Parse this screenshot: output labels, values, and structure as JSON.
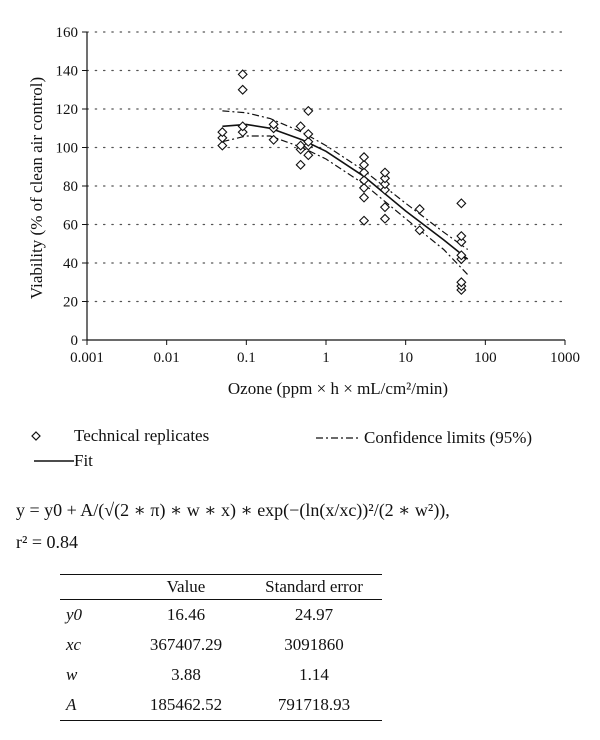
{
  "chart_data": {
    "type": "scatter",
    "xlabel": "Ozone (ppm × h × mL/cm²/min)",
    "ylabel": "Viability (% of clean air control)",
    "x_scale": "log",
    "xlim": [
      0.001,
      1000
    ],
    "ylim": [
      0,
      160
    ],
    "x_ticks": [
      "0.001",
      "0.01",
      "0.1",
      "1",
      "10",
      "100",
      "1000"
    ],
    "y_ticks": [
      "0",
      "20",
      "40",
      "60",
      "80",
      "100",
      "120",
      "140",
      "160"
    ],
    "grid": "dotted horizontal",
    "series": [
      {
        "name": "Technical replicates",
        "marker": "diamond",
        "points": [
          [
            0.05,
            101
          ],
          [
            0.05,
            105
          ],
          [
            0.05,
            108
          ],
          [
            0.09,
            108
          ],
          [
            0.09,
            111
          ],
          [
            0.09,
            130
          ],
          [
            0.09,
            138
          ],
          [
            0.22,
            104
          ],
          [
            0.22,
            110
          ],
          [
            0.22,
            112
          ],
          [
            0.48,
            91
          ],
          [
            0.48,
            99
          ],
          [
            0.48,
            101
          ],
          [
            0.48,
            111
          ],
          [
            0.6,
            96
          ],
          [
            0.6,
            101
          ],
          [
            0.6,
            103
          ],
          [
            0.6,
            107
          ],
          [
            0.6,
            119
          ],
          [
            3.0,
            62
          ],
          [
            3.0,
            74
          ],
          [
            3.0,
            79
          ],
          [
            3.0,
            83
          ],
          [
            3.0,
            87
          ],
          [
            3.0,
            91
          ],
          [
            3.0,
            95
          ],
          [
            5.5,
            63
          ],
          [
            5.5,
            69
          ],
          [
            5.5,
            78
          ],
          [
            5.5,
            81
          ],
          [
            5.5,
            84
          ],
          [
            5.5,
            87
          ],
          [
            15,
            57
          ],
          [
            15,
            68
          ],
          [
            50,
            26
          ],
          [
            50,
            28
          ],
          [
            50,
            30
          ],
          [
            50,
            42
          ],
          [
            50,
            44
          ],
          [
            50,
            51
          ],
          [
            50,
            54
          ],
          [
            50,
            71
          ]
        ]
      },
      {
        "name": "Fit",
        "style": "solid",
        "points": [
          [
            0.05,
            111
          ],
          [
            0.1,
            112
          ],
          [
            0.2,
            110
          ],
          [
            0.5,
            104
          ],
          [
            1,
            98
          ],
          [
            3,
            85
          ],
          [
            10,
            67
          ],
          [
            30,
            52
          ],
          [
            60,
            42
          ]
        ]
      },
      {
        "name": "Confidence limits (95%)",
        "style": "dash-dot",
        "upper": [
          [
            0.05,
            119
          ],
          [
            0.1,
            118
          ],
          [
            0.2,
            115
          ],
          [
            0.5,
            108
          ],
          [
            1,
            101
          ],
          [
            3,
            88
          ],
          [
            10,
            71
          ],
          [
            30,
            56
          ],
          [
            60,
            47
          ]
        ],
        "lower": [
          [
            0.05,
            103
          ],
          [
            0.1,
            106
          ],
          [
            0.2,
            106
          ],
          [
            0.5,
            100
          ],
          [
            1,
            94
          ],
          [
            3,
            81
          ],
          [
            10,
            63
          ],
          [
            30,
            47
          ],
          [
            60,
            34
          ]
        ]
      }
    ],
    "legend": [
      "Technical replicates",
      "Confidence limits (95%)",
      "Fit"
    ],
    "legend_position": "below"
  },
  "formula": {
    "equation": "y = y0 + A/(√(2 ∗ π) ∗ w ∗ x) ∗ exp(−(ln(x/xc))²/(2 ∗ w²)),",
    "r2": "r² = 0.84"
  },
  "table": {
    "headers": [
      "",
      "Value",
      "Standard error"
    ],
    "rows": [
      {
        "param": "y0",
        "value": "16.46",
        "se": "24.97"
      },
      {
        "param": "xc",
        "value": "367407.29",
        "se": "3091860"
      },
      {
        "param": "w",
        "value": "3.88",
        "se": "1.14"
      },
      {
        "param": "A",
        "value": "185462.52",
        "se": "791718.93"
      }
    ]
  }
}
